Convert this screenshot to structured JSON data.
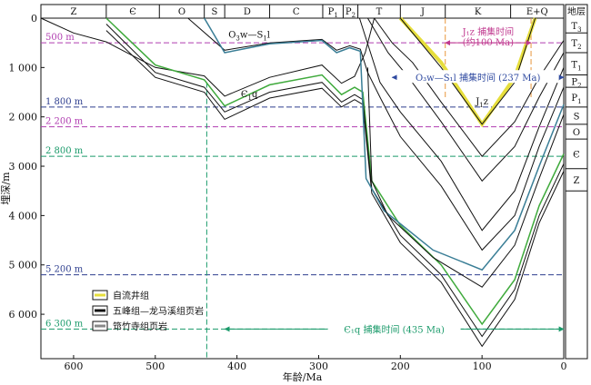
{
  "chart_data": {
    "type": "line",
    "xlabel": "年龄/Ma",
    "ylabel": "埋深/m",
    "xlim": [
      640,
      0
    ],
    "ylim": [
      0,
      6900
    ],
    "x_ticks": [
      "600",
      "500",
      "400",
      "300",
      "200",
      "100",
      "0"
    ],
    "x_tick_values": [
      600,
      500,
      400,
      300,
      200,
      100,
      0
    ],
    "y_ticks": [
      "0",
      "1 000",
      "2 000",
      "3 000",
      "4 000",
      "5 000",
      "6 000"
    ],
    "y_tick_values": [
      0,
      1000,
      2000,
      3000,
      4000,
      5000,
      6000
    ],
    "periods": [
      {
        "label": "Z",
        "from": 640,
        "to": 560
      },
      {
        "label": "Є",
        "from": 560,
        "to": 495
      },
      {
        "label": "O",
        "from": 495,
        "to": 440
      },
      {
        "label": "S",
        "from": 440,
        "to": 415
      },
      {
        "label": "D",
        "from": 415,
        "to": 360
      },
      {
        "label": "C",
        "from": 360,
        "to": 295
      },
      {
        "label": "P",
        "sub": "1",
        "from": 295,
        "to": 270
      },
      {
        "label": "P",
        "sub": "2",
        "from": 270,
        "to": 252
      },
      {
        "label": "T",
        "from": 252,
        "to": 200
      },
      {
        "label": "J",
        "from": 200,
        "to": 145
      },
      {
        "label": "K",
        "from": 145,
        "to": 65
      },
      {
        "label": "E+Q",
        "from": 65,
        "to": 0
      }
    ],
    "strata_header": "地层",
    "strata": [
      {
        "label": "T",
        "sub": "3",
        "top": 0,
        "bottom": 300
      },
      {
        "label": "T",
        "sub": "2",
        "top": 300,
        "bottom": 700
      },
      {
        "label": "T",
        "sub": "1",
        "top": 700,
        "bottom": 1150
      },
      {
        "label": "P",
        "sub": "2",
        "top": 1150,
        "bottom": 1400
      },
      {
        "label": "P",
        "sub": "1",
        "top": 1400,
        "bottom": 1800
      },
      {
        "label": "S",
        "top": 1800,
        "bottom": 2150
      },
      {
        "label": "O",
        "top": 2150,
        "bottom": 2450
      },
      {
        "label": "Є",
        "top": 2450,
        "bottom": 3050
      },
      {
        "label": "Z",
        "top": 3050,
        "bottom": 3500
      }
    ],
    "depth_markers": [
      {
        "label": "500 m",
        "depth": 500,
        "color": "#b03cb0"
      },
      {
        "label": "1 800 m",
        "depth": 1800,
        "color": "#2f3f8f"
      },
      {
        "label": "2 200 m",
        "depth": 2200,
        "color": "#b03cb0"
      },
      {
        "label": "2 800 m",
        "depth": 2800,
        "color": "#1a9a6a"
      },
      {
        "label": "5 200 m",
        "depth": 5200,
        "color": "#2f3f8f"
      },
      {
        "label": "6 300 m",
        "depth": 6300,
        "color": "#1a9a6a"
      }
    ],
    "curves": [
      {
        "style": "black",
        "points": [
          [
            640,
            0
          ],
          [
            600,
            300
          ],
          [
            560,
            480
          ],
          [
            500,
            1000
          ],
          [
            440,
            1170
          ],
          [
            415,
            1580
          ],
          [
            360,
            1200
          ],
          [
            296,
            950
          ],
          [
            272,
            1320
          ],
          [
            256,
            1180
          ],
          [
            243,
            700
          ],
          [
            232,
            0
          ]
        ]
      },
      {
        "style": "green",
        "points": [
          [
            560,
            0
          ],
          [
            500,
            950
          ],
          [
            440,
            1250
          ],
          [
            415,
            1780
          ],
          [
            360,
            1350
          ],
          [
            296,
            1150
          ],
          [
            272,
            1550
          ],
          [
            256,
            1400
          ],
          [
            246,
            1500
          ],
          [
            235,
            3300
          ],
          [
            200,
            4200
          ],
          [
            150,
            5000
          ],
          [
            100,
            6200
          ],
          [
            60,
            5300
          ],
          [
            30,
            3800
          ],
          [
            0,
            2750
          ]
        ]
      },
      {
        "style": "black",
        "points": [
          [
            560,
            120
          ],
          [
            500,
            1100
          ],
          [
            440,
            1400
          ],
          [
            415,
            1900
          ],
          [
            360,
            1500
          ],
          [
            296,
            1300
          ],
          [
            272,
            1700
          ],
          [
            256,
            1550
          ],
          [
            246,
            1650
          ],
          [
            235,
            3450
          ],
          [
            200,
            4400
          ],
          [
            150,
            5200
          ],
          [
            100,
            6450
          ],
          [
            60,
            5500
          ],
          [
            30,
            4000
          ],
          [
            0,
            2950
          ]
        ]
      },
      {
        "style": "black",
        "points": [
          [
            560,
            250
          ],
          [
            500,
            1200
          ],
          [
            440,
            1500
          ],
          [
            415,
            2050
          ],
          [
            360,
            1620
          ],
          [
            296,
            1420
          ],
          [
            272,
            1800
          ],
          [
            256,
            1650
          ],
          [
            246,
            1750
          ],
          [
            235,
            3550
          ],
          [
            200,
            4550
          ],
          [
            150,
            5350
          ],
          [
            100,
            6650
          ],
          [
            60,
            5700
          ],
          [
            30,
            4150
          ],
          [
            0,
            3100
          ]
        ]
      },
      {
        "style": "black",
        "points": [
          [
            460,
            0
          ],
          [
            415,
            650
          ],
          [
            360,
            500
          ],
          [
            296,
            430
          ],
          [
            278,
            650
          ],
          [
            262,
            560
          ],
          [
            249,
            630
          ],
          [
            240,
            1100
          ],
          [
            225,
            1600
          ],
          [
            200,
            2400
          ],
          [
            150,
            3400
          ],
          [
            100,
            4700
          ],
          [
            60,
            4000
          ],
          [
            30,
            2600
          ],
          [
            0,
            1400
          ]
        ]
      },
      {
        "style": "black",
        "points": [
          [
            250,
            0
          ],
          [
            225,
            1300
          ],
          [
            200,
            1900
          ],
          [
            150,
            2900
          ],
          [
            100,
            4300
          ],
          [
            60,
            3500
          ],
          [
            30,
            2200
          ],
          [
            0,
            1000
          ]
        ]
      },
      {
        "style": "black",
        "points": [
          [
            240,
            0
          ],
          [
            215,
            700
          ],
          [
            190,
            1200
          ],
          [
            150,
            2100
          ],
          [
            100,
            3300
          ],
          [
            60,
            2600
          ],
          [
            30,
            1600
          ],
          [
            0,
            700
          ]
        ]
      },
      {
        "style": "black",
        "points": [
          [
            232,
            0
          ],
          [
            210,
            500
          ],
          [
            185,
            900
          ],
          [
            150,
            1700
          ],
          [
            100,
            2800
          ],
          [
            60,
            2100
          ],
          [
            30,
            1200
          ],
          [
            0,
            450
          ]
        ]
      },
      {
        "style": "teal",
        "points": [
          [
            440,
            0
          ],
          [
            415,
            700
          ],
          [
            360,
            520
          ],
          [
            296,
            450
          ],
          [
            278,
            700
          ],
          [
            262,
            600
          ],
          [
            249,
            670
          ],
          [
            242,
            3250
          ],
          [
            220,
            3900
          ],
          [
            160,
            4700
          ],
          [
            100,
            5100
          ],
          [
            60,
            4300
          ],
          [
            30,
            3000
          ],
          [
            0,
            1750
          ]
        ]
      },
      {
        "style": "black",
        "points": [
          [
            240,
            1000
          ],
          [
            235,
            3300
          ],
          [
            215,
            4000
          ],
          [
            160,
            4850
          ],
          [
            100,
            5450
          ],
          [
            60,
            4600
          ],
          [
            30,
            3250
          ],
          [
            0,
            1950
          ]
        ]
      },
      {
        "style": "yellow",
        "points": [
          [
            200,
            0
          ],
          [
            150,
            900
          ],
          [
            100,
            2150
          ],
          [
            60,
            1200
          ],
          [
            35,
            0
          ]
        ]
      },
      {
        "style": "black",
        "points": [
          [
            200,
            0
          ],
          [
            150,
            1000
          ],
          [
            100,
            2150
          ],
          [
            60,
            1300
          ],
          [
            35,
            0
          ]
        ]
      }
    ],
    "line_labels": [
      {
        "text": "O",
        "sub": "3",
        "rest": "w—S",
        "sub2": "1",
        "rest2": "l",
        "x": 385,
        "depth": 400
      },
      {
        "text": "Є",
        "sub": "1",
        "rest": "q",
        "x": 385,
        "depth": 1600
      },
      {
        "text": "J",
        "sub": "1",
        "rest": "z",
        "x": 100,
        "depth": 1750
      }
    ],
    "annotations": [
      {
        "text": "J₁z 捕集时间",
        "line2": "(约100 Ma)",
        "from": 145,
        "to": 40,
        "depth": 500,
        "label_depth": 270,
        "label_depth2": 480,
        "color": "#c0398f"
      },
      {
        "text": "O₃w—S₁l 捕集时间 (237 Ma)",
        "from": 210,
        "to": 0,
        "depth": 1200,
        "label_depth": 1200,
        "color": "#2f4aa0"
      },
      {
        "text": "Є₁q 捕集时间 (435 Ma)",
        "from": 415,
        "to": 0,
        "depth": 6300,
        "label_depth": 6300,
        "color": "#1a9a6a"
      }
    ],
    "verticals": [
      {
        "x": 437,
        "from": 1300,
        "to": 6900,
        "color": "#1a9a6a"
      },
      {
        "x": 145,
        "from": 0,
        "to": 1600,
        "color": "#e8963c"
      },
      {
        "x": 40,
        "from": 0,
        "to": 1600,
        "color": "#e8963c"
      }
    ],
    "legend": [
      {
        "label": "自流井组",
        "color": "#e6de3c"
      },
      {
        "label": "五峰组—龙马溪组页岩",
        "color": "#111111"
      },
      {
        "label": "筇竹寺组页岩",
        "color": "#888888"
      }
    ],
    "colors": {
      "black": "#111111",
      "green": "#3faa3c",
      "teal": "#3a7e96",
      "yellow": "#e6de3c"
    }
  }
}
